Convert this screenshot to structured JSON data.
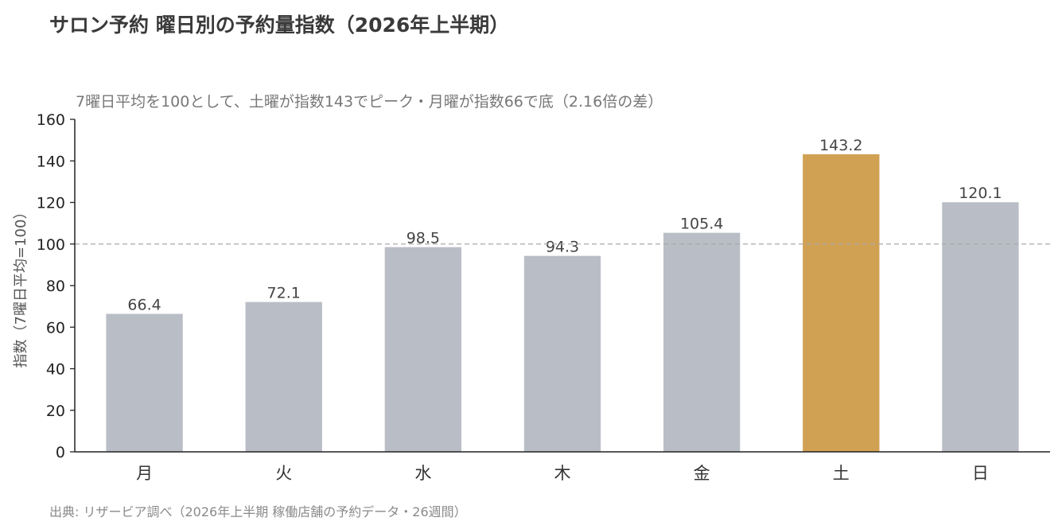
{
  "chart_data": {
    "type": "bar",
    "title": "サロン予約 曜日別の予約量指数（2026年上半期）",
    "subtitle": "7曜日平均を100として、土曜が指数143でピーク・月曜が指数66で底（2.16倍の差）",
    "ylabel": "指数（7曜日平均=100）",
    "xlabel": "",
    "categories": [
      "月",
      "火",
      "水",
      "木",
      "金",
      "土",
      "日"
    ],
    "values": [
      66.4,
      72.1,
      98.5,
      94.3,
      105.4,
      143.2,
      120.1
    ],
    "value_labels": [
      "66.4",
      "72.1",
      "98.5",
      "94.3",
      "105.4",
      "143.2",
      "120.1"
    ],
    "highlight_index": 5,
    "ylim": [
      0,
      160
    ],
    "yticks": [
      0,
      20,
      40,
      60,
      80,
      100,
      120,
      140,
      160
    ],
    "ytick_labels": [
      "0",
      "20",
      "40",
      "60",
      "80",
      "100",
      "120",
      "140",
      "160"
    ],
    "reference_line": 100,
    "grid": false,
    "colors": {
      "bar": "#b9bec6",
      "highlight": "#d1a153",
      "reference": "#aaaaaa",
      "axis": "#222222"
    },
    "source": "出典: リザービア調べ（2026年上半期 稼働店舗の予約データ・26週間）"
  }
}
